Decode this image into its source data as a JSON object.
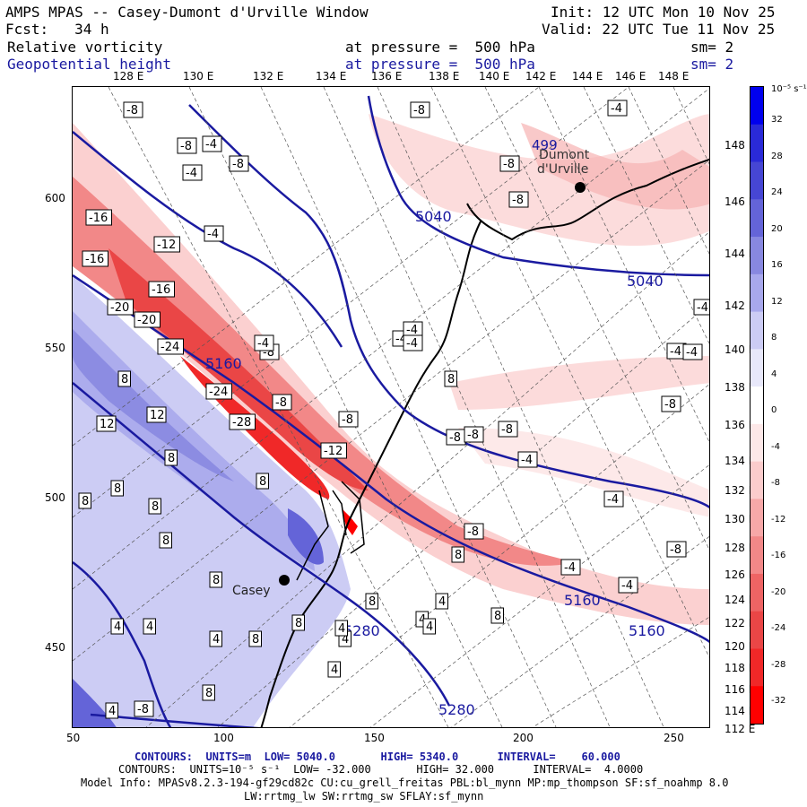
{
  "header": {
    "title_left": "AMPS MPAS -- Casey-Dumont d'Urville Window",
    "fcst_line": "Fcst:   34 h",
    "init_line": "Init: 12 UTC Mon 10 Nov 25",
    "valid_line": "Valid: 22 UTC Tue 11 Nov 25",
    "field1_name": "Relative vorticity",
    "field1_pressure": "at pressure =  500 hPa",
    "field1_sm": "sm= 2",
    "field2_name": "Geopotential height",
    "field2_pressure": "at pressure =  500 hPa",
    "field2_sm": "sm= 2"
  },
  "axes": {
    "top_lon_labels": [
      "128 E",
      "130 E",
      "132 E",
      "134 E",
      "136 E",
      "138 E",
      "140 E",
      "142 E",
      "144 E",
      "146 E",
      "148 E"
    ],
    "right_lat_labels": [
      "148 E",
      "146 E",
      "144 E",
      "142 E",
      "140 E",
      "138 E",
      "136 E",
      "134 E",
      "132 E",
      "130 E",
      "128 E",
      "126 E",
      "124 E",
      "122 E",
      "120 E",
      "118 E",
      "116 E",
      "114 E",
      "112 E"
    ],
    "left_labels": [
      "600",
      "550",
      "500",
      "450"
    ],
    "bottom_labels": [
      "50",
      "100",
      "150",
      "200",
      "250"
    ]
  },
  "colorbar": {
    "unit": "10⁻⁵ s⁻¹",
    "labels": [
      "32",
      "28",
      "24",
      "20",
      "16",
      "12",
      "8",
      "4",
      "0",
      "-4",
      "-8",
      "-12",
      "-16",
      "-20",
      "-24",
      "-28",
      "-32"
    ],
    "colors": [
      "#0000ee",
      "#2a2ad8",
      "#4646d4",
      "#6464d8",
      "#8888e0",
      "#a8a8ec",
      "#ccccf4",
      "#e8e8fa",
      "#ffffff",
      "#fde8e8",
      "#fbcccc",
      "#f7a8a8",
      "#f28888",
      "#ee6464",
      "#ea4646",
      "#f02828",
      "#ff0000"
    ]
  },
  "map_labels": {
    "casey": "Casey",
    "dumont": "Dumont d'Urville",
    "dumont_num": "499",
    "height_contours": [
      "5040",
      "5040",
      "5160",
      "5160",
      "5160",
      "5280",
      "5280"
    ],
    "vorticity_labels": [
      "-8",
      "-4",
      "-8",
      "-4",
      "-8",
      "-8",
      "-8",
      "-16",
      "-12",
      "-16",
      "-16",
      "-20",
      "-20",
      "-24",
      "-24",
      "-28",
      "-12",
      "-8",
      "-4",
      "-4",
      "-8",
      "-8",
      "-8",
      "-8",
      "-4",
      "-4",
      "-8",
      "-4",
      "-4",
      "-8",
      "-4",
      "-4",
      "-4",
      "-4",
      "-8",
      "-4",
      "-4",
      "-8",
      "-4",
      "-8",
      "8",
      "12",
      "12",
      "8",
      "8",
      "8",
      "8",
      "8",
      "8",
      "4",
      "8",
      "8",
      "4",
      "4",
      "4",
      "8",
      "4",
      "8",
      "8",
      "4",
      "4",
      "4",
      "8",
      "8",
      "4",
      "4",
      "8",
      "-8"
    ]
  },
  "footer": {
    "line1": "CONTOURS:  UNITS=m  LOW= 5040.0       HIGH= 5340.0      INTERVAL=    60.000",
    "line2": "CONTOURS:  UNITS=10⁻⁵ s⁻¹  LOW= -32.000       HIGH= 32.000      INTERVAL=  4.0000",
    "line3": "Model Info: MPASv8.2.3-194-gf29cd82c CU:cu_grell_freitas PBL:bl_mynn MP:mp_thompson SF:sf_noahmp 8.0",
    "line4": "LW:rrtmg_lw SW:rrtmg_sw SFLAY:sf_mynn"
  }
}
